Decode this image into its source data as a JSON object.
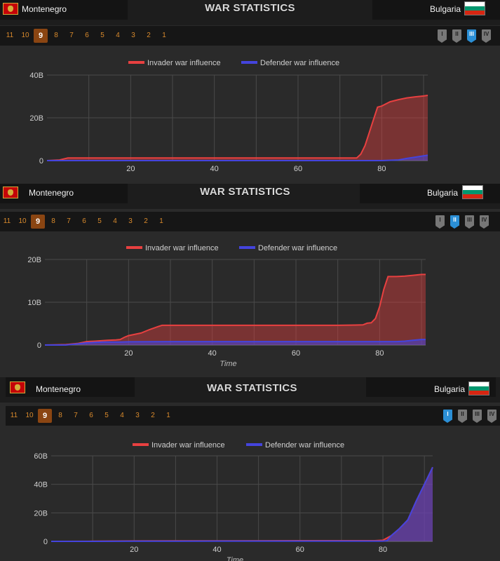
{
  "panels": [
    {
      "title": "WAR STATISTICS",
      "invader": "Montenegro",
      "defender": "Bulgaria",
      "rounds": [
        "11",
        "10",
        "9",
        "8",
        "7",
        "6",
        "5",
        "4",
        "3",
        "2",
        "1"
      ],
      "active_round": "9",
      "phases": [
        "I",
        "II",
        "III",
        "IV"
      ],
      "active_phase": "III",
      "chart_data": {
        "type": "area",
        "legend": [
          "Invader war influence",
          "Defender war influence"
        ],
        "xlabel": "",
        "ylabel": "",
        "y_ticks": [
          "0",
          "20B",
          "40B"
        ],
        "x_ticks": [
          "20",
          "40",
          "60",
          "80"
        ],
        "xlim": [
          0,
          91
        ],
        "ylim": [
          0,
          40
        ],
        "series": [
          {
            "name": "Invader war influence",
            "color": "#e84040",
            "x": [
              0,
              3,
              5,
              10,
              20,
              30,
              40,
              50,
              60,
              70,
              74,
              75,
              76,
              77,
              78,
              79,
              80,
              82,
              84,
              86,
              88,
              90,
              91
            ],
            "y": [
              0,
              0.3,
              1.2,
              1.2,
              1.2,
              1.2,
              1.2,
              1.2,
              1.2,
              1.2,
              1.2,
              3,
              7,
              13,
              19,
              25,
              25.5,
              27.5,
              28.5,
              29.3,
              29.8,
              30.2,
              30.5
            ]
          },
          {
            "name": "Defender war influence",
            "color": "#4444dd",
            "x": [
              0,
              10,
              20,
              40,
              60,
              80,
              84,
              86,
              88,
              90,
              91
            ],
            "y": [
              0,
              0,
              0,
              0,
              0,
              0,
              0.3,
              1,
              1.6,
              2.2,
              2.5
            ]
          }
        ]
      }
    },
    {
      "title": "WAR STATISTICS",
      "invader": "Montenegro",
      "defender": "Bulgaria",
      "rounds": [
        "11",
        "10",
        "9",
        "8",
        "7",
        "6",
        "5",
        "4",
        "3",
        "2",
        "1"
      ],
      "active_round": "9",
      "phases": [
        "I",
        "II",
        "III",
        "IV"
      ],
      "active_phase": "II",
      "chart_data": {
        "type": "area",
        "legend": [
          "Invader war influence",
          "Defender war influence"
        ],
        "xlabel": "Time",
        "ylabel": "",
        "y_ticks": [
          "0",
          "10B",
          "20B"
        ],
        "x_ticks": [
          "20",
          "40",
          "60",
          "80"
        ],
        "xlim": [
          0,
          91
        ],
        "ylim": [
          0,
          20
        ],
        "series": [
          {
            "name": "Invader war influence",
            "color": "#e84040",
            "x": [
              0,
              5,
              8,
              10,
              12,
              15,
              17,
              18,
              19,
              20,
              21,
              23,
              25,
              27,
              28,
              40,
              60,
              70,
              76,
              77,
              78,
              79,
              80,
              81,
              82,
              83,
              84,
              86,
              88,
              89,
              90,
              91
            ],
            "y": [
              0,
              0.1,
              0.4,
              0.8,
              0.9,
              1.1,
              1.2,
              1.3,
              1.8,
              2.2,
              2.4,
              2.8,
              3.6,
              4.3,
              4.6,
              4.6,
              4.6,
              4.6,
              4.7,
              5.1,
              5.2,
              6.2,
              9,
              13,
              16,
              16,
              16,
              16.1,
              16.3,
              16.4,
              16.5,
              16.5
            ]
          },
          {
            "name": "Defender war influence",
            "color": "#4444dd",
            "x": [
              0,
              5,
              8,
              10,
              12,
              14,
              18,
              20,
              30,
              40,
              60,
              80,
              84,
              86,
              88,
              90,
              91
            ],
            "y": [
              0,
              0,
              0.3,
              0.5,
              0.6,
              0.7,
              0.7,
              0.75,
              0.8,
              0.8,
              0.8,
              0.8,
              0.8,
              0.9,
              1.1,
              1.3,
              1.3
            ]
          }
        ]
      }
    },
    {
      "title": "WAR STATISTICS",
      "invader": "Montenegro",
      "defender": "Bulgaria",
      "rounds": [
        "11",
        "10",
        "9",
        "8",
        "7",
        "6",
        "5",
        "4",
        "3",
        "2",
        "1"
      ],
      "active_round": "9",
      "phases": [
        "I",
        "II",
        "III",
        "IV"
      ],
      "active_phase": "I",
      "chart_data": {
        "type": "area",
        "legend": [
          "Invader war influence",
          "Defender war influence"
        ],
        "xlabel": "Time",
        "ylabel": "",
        "y_ticks": [
          "0",
          "20B",
          "40B",
          "60B"
        ],
        "x_ticks": [
          "20",
          "40",
          "60",
          "80"
        ],
        "xlim": [
          0,
          92
        ],
        "ylim": [
          0,
          60
        ],
        "series": [
          {
            "name": "Invader war influence",
            "color": "#e84040",
            "x": [
              0,
              10,
              20,
              40,
              60,
              78,
              80,
              82,
              84,
              86,
              88,
              90,
              92
            ],
            "y": [
              0,
              0.1,
              0.3,
              0.4,
              0.5,
              0.5,
              0.8,
              4,
              9,
              15,
              28,
              40,
              52
            ]
          },
          {
            "name": "Defender war influence",
            "color": "#4444dd",
            "x": [
              0,
              10,
              20,
              40,
              60,
              80,
              81,
              82,
              84,
              86,
              88,
              90,
              92
            ],
            "y": [
              0,
              0,
              0.1,
              0.2,
              0.2,
              0.2,
              0.5,
              4,
              9,
              15,
              28,
              40,
              52
            ]
          }
        ]
      }
    }
  ]
}
